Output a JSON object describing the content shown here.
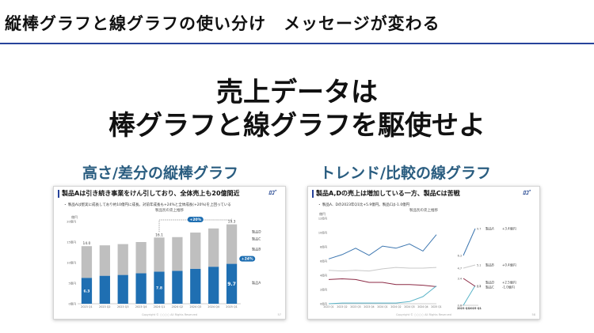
{
  "header": {
    "title": "縦棒グラフと線グラフの使い分け　メッセージが変わる"
  },
  "hero": {
    "line1": "売上データは",
    "line2": "棒グラフと線グラフを駆使せよ"
  },
  "left": {
    "subtitle": "高さ/差分の縦棒グラフ",
    "slide": {
      "title": "製品Aは引き続き事業をけん引しており、全体売上も20億間近",
      "note": "・ 製品Aは堅実に成長しており約10億円に成長。対前年成長も+24%と全体成長(+20%)を上回っている",
      "caption": "製品別の売上推移",
      "logo": "ﾛｺﾞ",
      "footer": "Copyright © ○○○○ All Rights Reserved",
      "page": "57"
    }
  },
  "right": {
    "subtitle": "トレンド/比較の線グラフ",
    "slide": {
      "title": "製品A,Dの売上は増加している一方、製品Cは苦戦",
      "note": "・ 製品A、Dの2023年Q1比+5.9億円。製品Cは-1.0億円",
      "caption": "製品別の売上推移",
      "logo": "ﾛｺﾞ",
      "footer": "Copyright © ○○○○ All Rights Reserved",
      "page": "58"
    }
  },
  "chart_data": [
    {
      "type": "bar",
      "title": "製品別の売上推移",
      "ylabel": "億円",
      "yticks": [
        "0億円",
        "5億円",
        "10億円",
        "15億円",
        "20億円"
      ],
      "ylim": [
        0,
        20
      ],
      "categories": [
        "2023 Q1",
        "2023 Q2",
        "2023 Q3",
        "2023 Q4",
        "2024 Q1",
        "2024 Q2",
        "2024 Q3",
        "2024 Q4",
        "2025 Q1"
      ],
      "series": [
        {
          "name": "製品A",
          "values": [
            6.3,
            6.8,
            7.0,
            7.4,
            7.8,
            8.0,
            8.5,
            9.0,
            9.7
          ],
          "color": "#1f6fb2"
        },
        {
          "name": "製品B",
          "values": [
            7.7,
            7.4,
            7.5,
            7.6,
            8.3,
            8.2,
            8.8,
            9.3,
            9.6
          ],
          "color": "#bfbfbf"
        },
        {
          "name": "製品C",
          "values": [
            0.0,
            0.0,
            0.0,
            0.0,
            0.0,
            0.0,
            0.0,
            0.0,
            0.0
          ],
          "color": "#d9d9d9"
        }
      ],
      "total_labels": {
        "2023 Q1": "14.0",
        "2024 Q1": "16.1",
        "2025 Q1": "19.3"
      },
      "value_labels": {
        "2023 Q1": "6.3",
        "2024 Q1": "7.8",
        "2025 Q1": "9.7"
      },
      "annotations": [
        "+20%",
        "+24%"
      ],
      "legend": [
        "製品C",
        "製品B",
        "製品A"
      ],
      "legend_extra": "製品D"
    },
    {
      "type": "line",
      "title": "製品別の売上推移",
      "ylabel": "億円",
      "yticks": [
        "0億円",
        "2億円",
        "4億円",
        "6億円",
        "8億円",
        "10億円",
        "12億円"
      ],
      "ylim": [
        0,
        12
      ],
      "categories": [
        "2023 Q1",
        "2023 Q2",
        "2023 Q3",
        "2023 Q4",
        "2024 Q1",
        "2024 Q2",
        "2024 Q3",
        "2024 Q4",
        "2025 Q1"
      ],
      "series": [
        {
          "name": "製品A",
          "values": [
            6.3,
            6.9,
            7.8,
            6.8,
            8.1,
            7.8,
            8.4,
            7.4,
            9.7
          ],
          "color": "#3c76b0"
        },
        {
          "name": "製品B",
          "values": [
            4.7,
            4.6,
            4.7,
            4.6,
            4.9,
            5.1,
            5.0,
            5.0,
            5.1
          ],
          "color": "#c8c8c8"
        },
        {
          "name": "製品C",
          "values": [
            3.4,
            3.5,
            3.4,
            3.0,
            3.0,
            2.7,
            2.7,
            2.6,
            2.4
          ],
          "color": "#8c2a45"
        },
        {
          "name": "製品D",
          "values": [
            0.0,
            0.1,
            0.1,
            0.1,
            0.1,
            0.1,
            0.3,
            1.0,
            2.5
          ],
          "color": "#5ab4c8"
        }
      ],
      "side": {
        "x": [
          "2023 Q1",
          "2025 Q1"
        ],
        "entries": [
          {
            "name": "製品A",
            "from": 6.3,
            "to": 9.7,
            "from_label": "6.3",
            "to_label": "9.7",
            "delta": "+3.4億円"
          },
          {
            "name": "製品B",
            "from": 4.7,
            "to": 5.1,
            "from_label": "4.7",
            "to_label": "5.1",
            "delta": "+0.4億円"
          },
          {
            "name": "製品D",
            "from": 0.0,
            "to": 2.5,
            "from_label": "0.0",
            "to_label": "2.5",
            "delta": "+2.5億円"
          },
          {
            "name": "製品C",
            "from": 3.4,
            "to": 2.4,
            "from_label": "3.4",
            "to_label": "2.4",
            "delta": "-1.0億円"
          }
        ]
      }
    }
  ]
}
